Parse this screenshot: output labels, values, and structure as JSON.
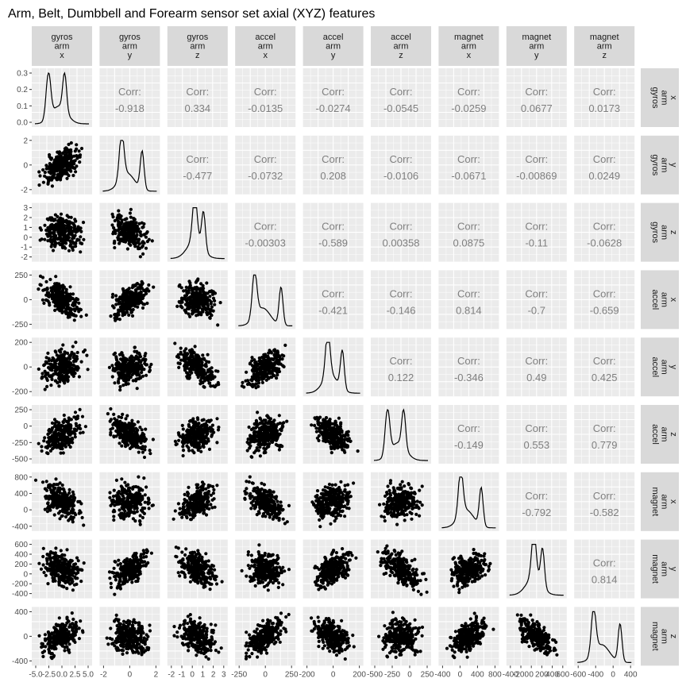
{
  "chart_data": {
    "type": "scatter-matrix",
    "title": "Arm, Belt, Dumbbell and Forearm sensor set axial (XYZ) features",
    "variables": [
      {
        "name": "gyros arm x",
        "strip": [
          "gyros",
          "arm",
          "x"
        ]
      },
      {
        "name": "gyros arm y",
        "strip": [
          "gyros",
          "arm",
          "y"
        ]
      },
      {
        "name": "gyros arm z",
        "strip": [
          "gyros",
          "arm",
          "z"
        ]
      },
      {
        "name": "accel arm x",
        "strip": [
          "accel",
          "arm",
          "x"
        ]
      },
      {
        "name": "accel arm y",
        "strip": [
          "accel",
          "arm",
          "y"
        ]
      },
      {
        "name": "accel arm z",
        "strip": [
          "accel",
          "arm",
          "z"
        ]
      },
      {
        "name": "magnet arm x",
        "strip": [
          "magnet",
          "arm",
          "x"
        ]
      },
      {
        "name": "magnet arm y",
        "strip": [
          "magnet",
          "arm",
          "y"
        ]
      },
      {
        "name": "magnet arm z",
        "strip": [
          "magnet",
          "arm",
          "z"
        ]
      }
    ],
    "y_axis_ticks": [
      [
        "0.3",
        "0.2",
        "0.1",
        "0.0"
      ],
      [
        "2",
        "0",
        "-2"
      ],
      [
        "3",
        "2",
        "1",
        "0",
        "-1",
        "-2"
      ],
      [
        "250",
        "0",
        "-250"
      ],
      [
        "200",
        "0",
        "-200"
      ],
      [
        "250",
        "0",
        "-250",
        "-500"
      ],
      [
        "800",
        "400",
        "0",
        "-400"
      ],
      [
        "600",
        "400",
        "200",
        "0",
        "-200",
        "-400"
      ],
      [
        "400",
        "0",
        "-400"
      ]
    ],
    "x_axis_ticks": [
      [
        "-5.0",
        "-2.5",
        "0.0",
        "2.5",
        "5.0"
      ],
      [
        "-2",
        "0",
        "2"
      ],
      [
        "-2",
        "-1",
        "0",
        "1",
        "2",
        "3"
      ],
      [
        "-250",
        "0",
        "250"
      ],
      [
        "-200",
        "0",
        "200"
      ],
      [
        "-500",
        "-250",
        "0",
        "250"
      ],
      [
        "-400",
        "0",
        "400",
        "800"
      ],
      [
        "-400",
        "-200",
        "0",
        "200",
        "400",
        "600"
      ],
      [
        "-600",
        "-400",
        "0",
        "400"
      ]
    ],
    "correlation_label": "Corr:",
    "correlations": [
      {
        "row": 1,
        "col": 2,
        "value": "-0.918"
      },
      {
        "row": 1,
        "col": 3,
        "value": "0.334"
      },
      {
        "row": 1,
        "col": 4,
        "value": "-0.0135"
      },
      {
        "row": 1,
        "col": 5,
        "value": "-0.0274"
      },
      {
        "row": 1,
        "col": 6,
        "value": "-0.0545"
      },
      {
        "row": 1,
        "col": 7,
        "value": "-0.0259"
      },
      {
        "row": 1,
        "col": 8,
        "value": "0.0677"
      },
      {
        "row": 1,
        "col": 9,
        "value": "0.0173"
      },
      {
        "row": 2,
        "col": 3,
        "value": "-0.477"
      },
      {
        "row": 2,
        "col": 4,
        "value": "-0.0732"
      },
      {
        "row": 2,
        "col": 5,
        "value": "0.208"
      },
      {
        "row": 2,
        "col": 6,
        "value": "-0.0106"
      },
      {
        "row": 2,
        "col": 7,
        "value": "-0.0671"
      },
      {
        "row": 2,
        "col": 8,
        "value": "-0.00869"
      },
      {
        "row": 2,
        "col": 9,
        "value": "0.0249"
      },
      {
        "row": 3,
        "col": 4,
        "value": "-0.00303"
      },
      {
        "row": 3,
        "col": 5,
        "value": "-0.589"
      },
      {
        "row": 3,
        "col": 6,
        "value": "0.00358"
      },
      {
        "row": 3,
        "col": 7,
        "value": "0.0875"
      },
      {
        "row": 3,
        "col": 8,
        "value": "-0.11"
      },
      {
        "row": 3,
        "col": 9,
        "value": "-0.0628"
      },
      {
        "row": 4,
        "col": 5,
        "value": "-0.421"
      },
      {
        "row": 4,
        "col": 6,
        "value": "-0.146"
      },
      {
        "row": 4,
        "col": 7,
        "value": "0.814"
      },
      {
        "row": 4,
        "col": 8,
        "value": "-0.7"
      },
      {
        "row": 4,
        "col": 9,
        "value": "-0.659"
      },
      {
        "row": 5,
        "col": 6,
        "value": "0.122"
      },
      {
        "row": 5,
        "col": 7,
        "value": "-0.346"
      },
      {
        "row": 5,
        "col": 8,
        "value": "0.49"
      },
      {
        "row": 5,
        "col": 9,
        "value": "0.425"
      },
      {
        "row": 6,
        "col": 7,
        "value": "-0.149"
      },
      {
        "row": 6,
        "col": 8,
        "value": "0.553"
      },
      {
        "row": 6,
        "col": 9,
        "value": "0.779"
      },
      {
        "row": 7,
        "col": 8,
        "value": "-0.792"
      },
      {
        "row": 7,
        "col": 9,
        "value": "-0.582"
      },
      {
        "row": 8,
        "col": 9,
        "value": "0.814"
      }
    ],
    "lower_panels": "scatter",
    "diagonal_panels": "density",
    "grid": true,
    "panel_background": "#ebebeb",
    "strip_background": "#d9d9d9",
    "point_color": "#000000"
  }
}
